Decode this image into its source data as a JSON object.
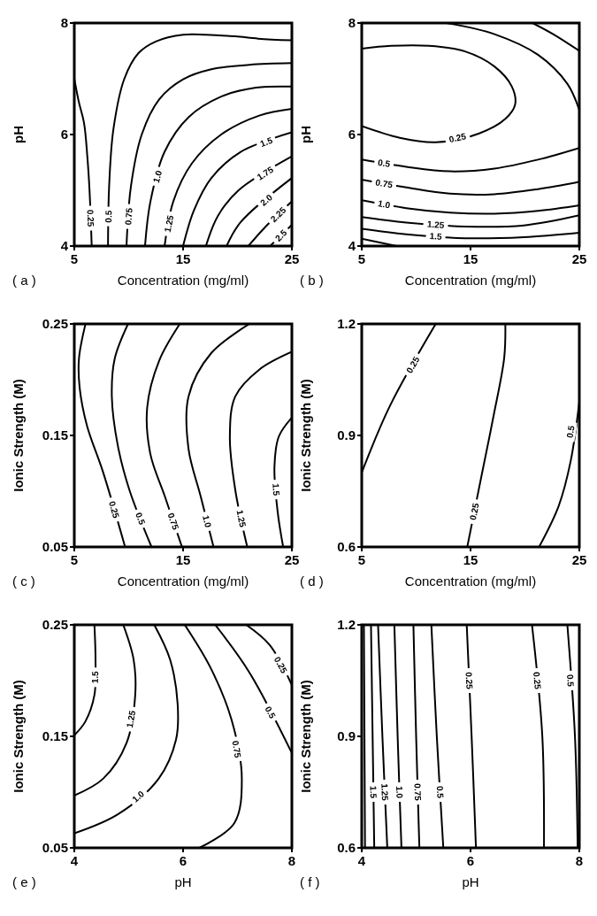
{
  "chart_data": [
    {
      "type": "line",
      "title": "( a )",
      "xlabel": "Concentration (mg/ml)",
      "ylabel": "pH",
      "xlim": [
        5,
        25
      ],
      "ylim": [
        4,
        8
      ],
      "xticks": [
        5,
        15,
        25
      ],
      "yticks": [
        4,
        6,
        8
      ],
      "grid": false,
      "series": [
        {
          "name": "0.25",
          "color": "#000000",
          "x": [
            5,
            5.4,
            5.9,
            6.2,
            6.4,
            6.6
          ],
          "values": [
            7.0,
            6.6,
            6.2,
            5.6,
            5.0,
            4.0
          ]
        },
        {
          "name": "0.5",
          "color": "#000000",
          "x": [
            8.1,
            8.2,
            8.6,
            9.6,
            10.9,
            12.5,
            15,
            17.1,
            19.8,
            21.9,
            25
          ],
          "values": [
            4,
            5.06,
            6.1,
            7.0,
            7.46,
            7.67,
            7.79,
            7.79,
            7.76,
            7.72,
            7.69
          ]
        },
        {
          "name": "0.75",
          "color": "#000000",
          "x": [
            9.8,
            10.2,
            11.2,
            12.8,
            15,
            17.6,
            21.1,
            25
          ],
          "values": [
            4,
            5.06,
            6.0,
            6.63,
            6.99,
            7.17,
            7.25,
            7.28
          ]
        },
        {
          "name": "1.0",
          "color": "#000000",
          "x": [
            11.5,
            12.0,
            13.3,
            15.5,
            18.5,
            21.7,
            25
          ],
          "values": [
            4,
            4.8,
            5.69,
            6.31,
            6.68,
            6.84,
            6.86
          ]
        },
        {
          "name": "1.25",
          "color": "#000000",
          "x": [
            13.3,
            14.1,
            15.8,
            18.5,
            22,
            25
          ],
          "values": [
            4,
            4.8,
            5.48,
            6.0,
            6.34,
            6.46
          ]
        },
        {
          "name": "1.5",
          "color": "#000000",
          "x": [
            15,
            16,
            17.6,
            20.3,
            25
          ],
          "values": [
            4,
            4.64,
            5.22,
            5.69,
            6.04
          ]
        },
        {
          "name": "1.75",
          "color": "#000000",
          "x": [
            17.1,
            18.2,
            20.1,
            25
          ],
          "values": [
            4,
            4.54,
            5.0,
            5.61
          ]
        },
        {
          "name": "2.0",
          "color": "#000000",
          "x": [
            19.0,
            20.3,
            25
          ],
          "values": [
            4,
            4.43,
            5.22
          ]
        },
        {
          "name": "2.25",
          "color": "#000000",
          "x": [
            21.0,
            22.5,
            25
          ],
          "values": [
            4,
            4.33,
            4.8
          ]
        },
        {
          "name": "2.5",
          "color": "#000000",
          "x": [
            23.0,
            25
          ],
          "values": [
            4,
            4.38
          ]
        }
      ]
    },
    {
      "type": "line",
      "title": "( b )",
      "xlabel": "Concentration (mg/ml)",
      "ylabel": "pH",
      "xlim": [
        5,
        25
      ],
      "ylim": [
        4,
        8
      ],
      "xticks": [
        5,
        15,
        25
      ],
      "yticks": [
        4,
        6,
        8
      ],
      "grid": false,
      "series": [
        {
          "color": "#000000",
          "x": [
            20.7,
            22.6,
            25
          ],
          "values": [
            8,
            7.8,
            7.5
          ]
        },
        {
          "color": "#000000",
          "x": [
            12.8,
            17.2,
            21.2,
            23.9,
            25
          ],
          "values": [
            8,
            7.8,
            7.43,
            6.91,
            6.44
          ]
        },
        {
          "name": "0.25",
          "color": "#000000",
          "x": [
            5,
            8.5,
            11.8,
            15.8,
            18.2,
            19.1,
            18.8,
            17.2,
            14.5,
            11.2,
            7.7,
            5
          ],
          "values": [
            6.15,
            5.94,
            5.86,
            6.02,
            6.28,
            6.54,
            6.86,
            7.22,
            7.49,
            7.59,
            7.59,
            7.54
          ]
        },
        {
          "name": "0.5",
          "color": "#000000",
          "x": [
            5,
            9.1,
            13.1,
            17.2,
            21.2,
            25
          ],
          "values": [
            5.55,
            5.42,
            5.34,
            5.39,
            5.55,
            5.76
          ]
        },
        {
          "name": "0.75",
          "color": "#000000",
          "x": [
            5,
            9.1,
            13.1,
            17.2,
            21.2,
            25
          ],
          "values": [
            5.19,
            5.05,
            4.94,
            4.93,
            5.02,
            5.15
          ]
        },
        {
          "name": "1.0",
          "color": "#000000",
          "x": [
            5,
            9.1,
            13.1,
            17.2,
            21.2,
            25
          ],
          "values": [
            4.82,
            4.68,
            4.6,
            4.58,
            4.63,
            4.73
          ]
        },
        {
          "name": "1.25",
          "color": "#000000",
          "x": [
            5,
            9.1,
            14.5,
            19.9,
            25
          ],
          "values": [
            4.52,
            4.42,
            4.35,
            4.37,
            4.55
          ]
        },
        {
          "name": "1.5",
          "color": "#000000",
          "x": [
            5,
            9.1,
            14.5,
            19.9,
            25
          ],
          "values": [
            4.31,
            4.21,
            4.14,
            4.16,
            4.24
          ]
        },
        {
          "color": "#000000",
          "x": [
            5,
            8.2
          ],
          "values": [
            4.13,
            4.0
          ]
        }
      ]
    },
    {
      "type": "line",
      "title": "( c )",
      "xlabel": "Concentration (mg/ml)",
      "ylabel": "Ionic Strength (M)",
      "xlim": [
        5,
        25
      ],
      "ylim": [
        0.05,
        0.25
      ],
      "xticks": [
        5,
        15,
        25
      ],
      "yticks": [
        0.05,
        0.15,
        0.25
      ],
      "grid": false,
      "series": [
        {
          "name": "0.25",
          "color": "#000000",
          "x": [
            6.03,
            5.43,
            5.49,
            6.16,
            7.65,
            9.67
          ],
          "values": [
            0.25,
            0.219,
            0.193,
            0.159,
            0.117,
            0.05
          ]
        },
        {
          "name": "0.5",
          "color": "#000000",
          "x": [
            9.94,
            8.72,
            8.45,
            9.0,
            10.07,
            12.1
          ],
          "values": [
            0.25,
            0.219,
            0.185,
            0.141,
            0.101,
            0.05
          ]
        },
        {
          "name": "0.75",
          "color": "#000000",
          "x": [
            14.7,
            12.8,
            11.7,
            12.0,
            13.3,
            14.9
          ],
          "values": [
            0.25,
            0.217,
            0.175,
            0.133,
            0.096,
            0.05
          ]
        },
        {
          "name": "1.0",
          "color": "#000000",
          "x": [
            21.1,
            17.6,
            15.5,
            15.5,
            16.6,
            17.8
          ],
          "values": [
            0.25,
            0.224,
            0.185,
            0.138,
            0.096,
            0.05
          ]
        },
        {
          "name": "1.25",
          "color": "#000000",
          "x": [
            25,
            22.0,
            19.8,
            19.3,
            19.8,
            20.9
          ],
          "values": [
            0.225,
            0.209,
            0.185,
            0.149,
            0.101,
            0.05
          ]
        },
        {
          "name": "1.5",
          "color": "#000000",
          "x": [
            25,
            23.8,
            23.4,
            23.7,
            24.2
          ],
          "values": [
            0.166,
            0.149,
            0.122,
            0.081,
            0.05
          ]
        }
      ]
    },
    {
      "type": "line",
      "title": "( d )",
      "xlabel": "Concentration (mg/ml)",
      "ylabel": "Ionic Strength (M)",
      "xlim": [
        5,
        25
      ],
      "ylim": [
        0.6,
        1.2
      ],
      "xticks": [
        5,
        15,
        25
      ],
      "yticks": [
        0.6,
        0.9,
        1.2
      ],
      "grid": false,
      "series": [
        {
          "name": "0.25",
          "color": "#000000",
          "x": [
            5,
            7.6,
            11.8
          ],
          "values": [
            0.8,
            0.98,
            1.2
          ]
        },
        {
          "name": "0.25",
          "color": "#000000",
          "x": [
            14.7,
            16.0,
            17.1,
            18.1,
            18.2
          ],
          "values": [
            0.6,
            0.79,
            0.95,
            1.11,
            1.2
          ]
        },
        {
          "name": "0.5",
          "color": "#000000",
          "x": [
            21.3,
            23.1,
            24.2,
            25
          ],
          "values": [
            0.6,
            0.71,
            0.83,
            0.99
          ]
        }
      ]
    },
    {
      "type": "line",
      "title": "( e )",
      "xlabel": "pH",
      "ylabel": "Ionic Strength (M)",
      "xlim": [
        4,
        8
      ],
      "ylim": [
        0.05,
        0.25
      ],
      "xticks": [
        4,
        6,
        8
      ],
      "yticks": [
        0.05,
        0.15,
        0.25
      ],
      "grid": false,
      "series": [
        {
          "name": "1.5",
          "color": "#000000",
          "x": [
            4.37,
            4.39,
            4.37,
            4.2,
            4.0
          ],
          "values": [
            0.25,
            0.219,
            0.187,
            0.163,
            0.151
          ]
        },
        {
          "name": "1.25",
          "color": "#000000",
          "x": [
            4.9,
            5.09,
            5.12,
            4.96,
            4.53,
            4.0
          ],
          "values": [
            0.25,
            0.219,
            0.187,
            0.144,
            0.112,
            0.097
          ]
        },
        {
          "name": "1.0",
          "color": "#000000",
          "x": [
            5.47,
            5.76,
            5.9,
            5.87,
            5.55,
            4.8,
            4.0
          ],
          "values": [
            0.25,
            0.219,
            0.179,
            0.147,
            0.112,
            0.08,
            0.063
          ]
        },
        {
          "name": "0.75",
          "color": "#000000",
          "x": [
            6.03,
            6.51,
            6.89,
            7.08,
            6.94,
            6.3
          ],
          "values": [
            0.25,
            0.211,
            0.165,
            0.112,
            0.072,
            0.05
          ]
        },
        {
          "name": "0.5",
          "color": "#000000",
          "x": [
            6.59,
            7.21,
            8
          ],
          "values": [
            0.25,
            0.208,
            0.135
          ]
        },
        {
          "name": "0.25",
          "color": "#000000",
          "x": [
            7.16,
            7.59,
            8
          ],
          "values": [
            0.25,
            0.232,
            0.196
          ]
        }
      ]
    },
    {
      "type": "line",
      "title": "( f )",
      "xlabel": "pH",
      "ylabel": "Ionic Strength (M)",
      "xlim": [
        4,
        8
      ],
      "ylim": [
        0.6,
        1.2
      ],
      "xticks": [
        4,
        6,
        8
      ],
      "yticks": [
        0.6,
        0.9,
        1.2
      ],
      "grid": false,
      "series": [
        {
          "color": "#000000",
          "x": [
            4.04,
            4.05,
            4.06
          ],
          "values": [
            1.2,
            0.9,
            0.6
          ]
        },
        {
          "name": "1.5",
          "color": "#000000",
          "x": [
            4.17,
            4.2,
            4.23
          ],
          "values": [
            1.2,
            0.9,
            0.6
          ]
        },
        {
          "name": "1.25",
          "color": "#000000",
          "x": [
            4.3,
            4.38,
            4.47
          ],
          "values": [
            1.2,
            0.9,
            0.6
          ]
        },
        {
          "name": "1.0",
          "color": "#000000",
          "x": [
            4.6,
            4.66,
            4.73
          ],
          "values": [
            1.2,
            0.9,
            0.6
          ]
        },
        {
          "name": "0.75",
          "color": "#000000",
          "x": [
            4.95,
            5.0,
            5.06
          ],
          "values": [
            1.2,
            0.9,
            0.6
          ]
        },
        {
          "name": "0.5",
          "color": "#000000",
          "x": [
            5.28,
            5.38,
            5.5
          ],
          "values": [
            1.2,
            0.9,
            0.6
          ]
        },
        {
          "name": "0.25",
          "color": "#000000",
          "x": [
            5.93,
            6.02,
            6.1
          ],
          "values": [
            1.2,
            0.9,
            0.6
          ]
        },
        {
          "name": "0.25",
          "color": "#000000",
          "x": [
            7.13,
            7.32,
            7.35
          ],
          "values": [
            1.2,
            0.9,
            0.6
          ]
        },
        {
          "name": "0.5",
          "color": "#000000",
          "x": [
            7.78,
            7.92,
            7.97
          ],
          "values": [
            1.2,
            0.9,
            0.6
          ]
        }
      ]
    }
  ]
}
